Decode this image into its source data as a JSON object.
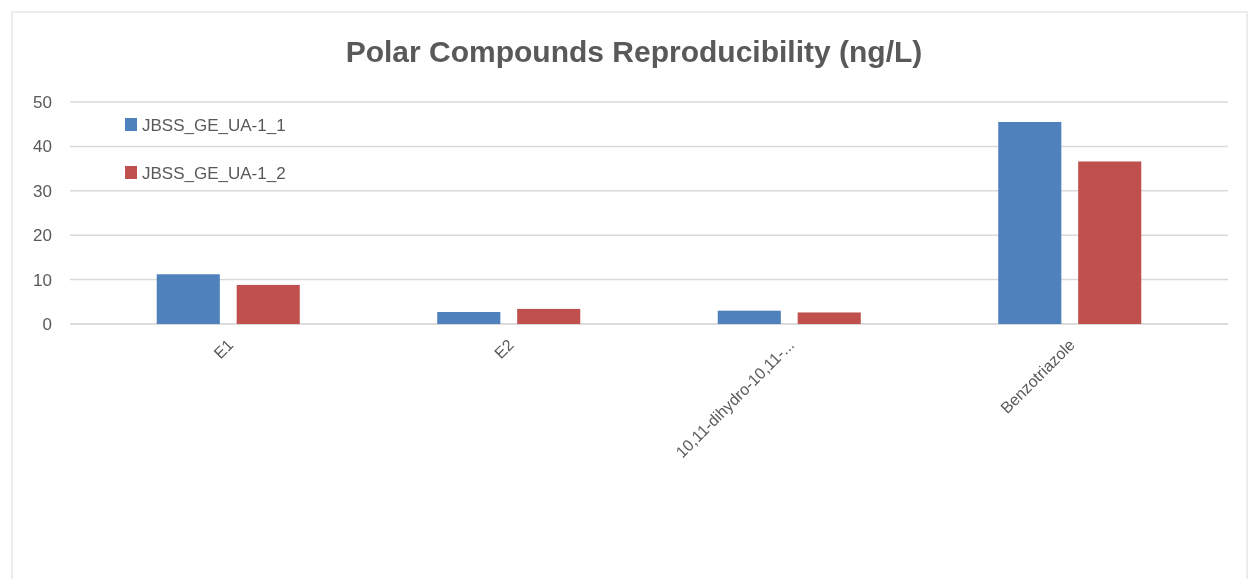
{
  "chart_data": {
    "type": "bar",
    "title": "Polar Compounds Reproducibility (ng/L)",
    "categories": [
      "E1",
      "E2",
      "10,11-dihydro-10,11-...",
      "Benzotriazole"
    ],
    "series": [
      {
        "name": "JBSS_GE_UA-1_1",
        "color": "#4f81bd",
        "values": [
          11.2,
          2.7,
          3.0,
          45.5
        ]
      },
      {
        "name": "JBSS_GE_UA-1_2",
        "color": "#c0504d",
        "values": [
          8.8,
          3.4,
          2.6,
          36.6
        ]
      }
    ],
    "ylim": [
      0,
      50
    ],
    "yticks": [
      0,
      10,
      20,
      30,
      40,
      50
    ],
    "grid": "y",
    "legend": "top left"
  }
}
